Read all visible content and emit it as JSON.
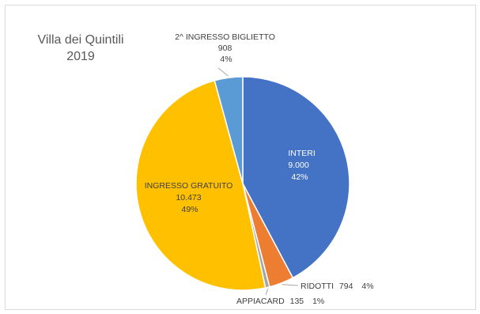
{
  "chart_data": {
    "type": "pie",
    "title_lines": [
      "Villa dei Quintili",
      "2019"
    ],
    "slices": [
      {
        "name": "INTERI",
        "value": 9000,
        "value_label": "9.000",
        "percent_label": "42%",
        "color": "#4472C4"
      },
      {
        "name": "RIDOTTI",
        "value": 794,
        "value_label": "794",
        "percent_label": "4%",
        "color": "#ED7D31"
      },
      {
        "name": "APPIACARD",
        "value": 135,
        "value_label": "135",
        "percent_label": "1%",
        "color": "#A5A5A5"
      },
      {
        "name": "INGRESSO GRATUITO",
        "value": 10473,
        "value_label": "10.473",
        "percent_label": "49%",
        "color": "#FFC000"
      },
      {
        "name": "2^ INGRESSO BIGLIETTO",
        "value": 908,
        "value_label": "908",
        "percent_label": "4%",
        "color": "#5B9BD5"
      }
    ]
  }
}
